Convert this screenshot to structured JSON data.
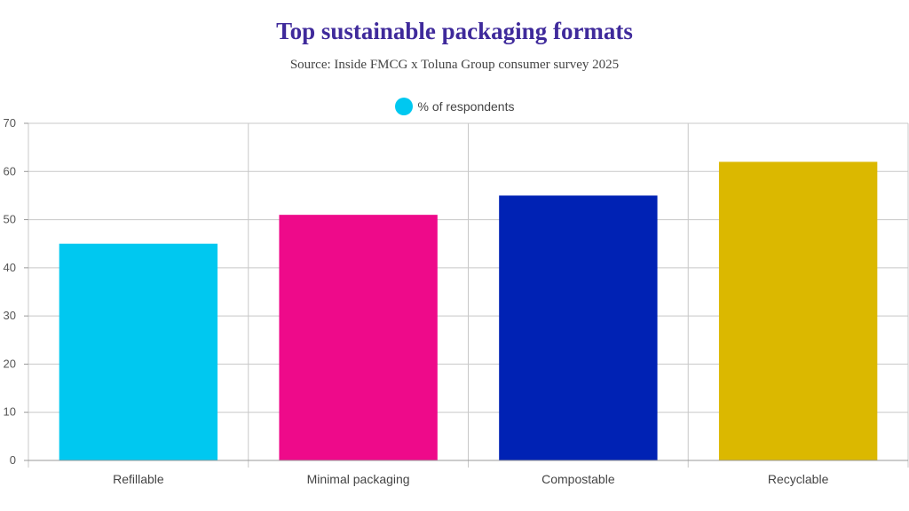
{
  "chart_data": {
    "type": "bar",
    "title": "Top sustainable packaging formats",
    "subtitle": "Source: Inside FMCG x Toluna Group consumer survey 2025",
    "categories": [
      "Refillable",
      "Minimal packaging",
      "Compostable",
      "Recyclable"
    ],
    "series": [
      {
        "name": "% of respondents",
        "values": [
          45,
          51,
          55,
          62
        ]
      }
    ],
    "bar_colors": [
      "#00c8f0",
      "#ee0a8a",
      "#0022b4",
      "#dbb800"
    ],
    "legend_color": "#00c8f0",
    "ylim": [
      0,
      70
    ],
    "yticks": [
      0,
      10,
      20,
      30,
      40,
      50,
      60,
      70
    ],
    "xlabel": "",
    "ylabel": "",
    "grid": true,
    "legend_position": "top-center"
  }
}
